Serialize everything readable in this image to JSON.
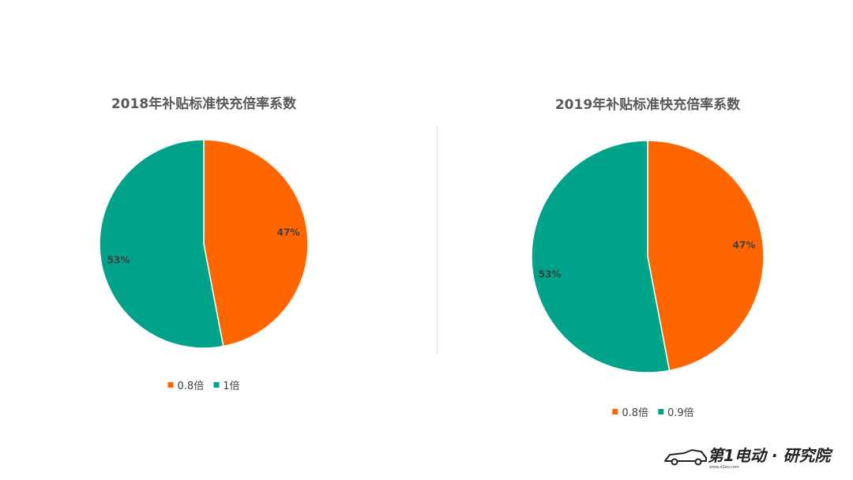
{
  "colors": {
    "orange": "#FF6600",
    "teal": "#00A28A",
    "text": "#595959"
  },
  "chart_data": [
    {
      "type": "pie",
      "title": "2018年补贴标准快充倍率系数",
      "labels": [
        "0.8倍",
        "1倍"
      ],
      "values": [
        47,
        53
      ],
      "value_labels": [
        "47%",
        "53%"
      ],
      "colors": [
        "#FF6600",
        "#00A28A"
      ],
      "legend": "bottom"
    },
    {
      "type": "pie",
      "title": "2019年补贴标准快充倍率系数",
      "labels": [
        "0.8倍",
        "0.9倍"
      ],
      "values": [
        47,
        53
      ],
      "value_labels": [
        "47%",
        "53%"
      ],
      "colors": [
        "#FF6600",
        "#00A28A"
      ],
      "legend": "bottom"
    }
  ],
  "logo": {
    "text": "第1电动 · 研究院",
    "sub": "www.d1ev.com"
  }
}
